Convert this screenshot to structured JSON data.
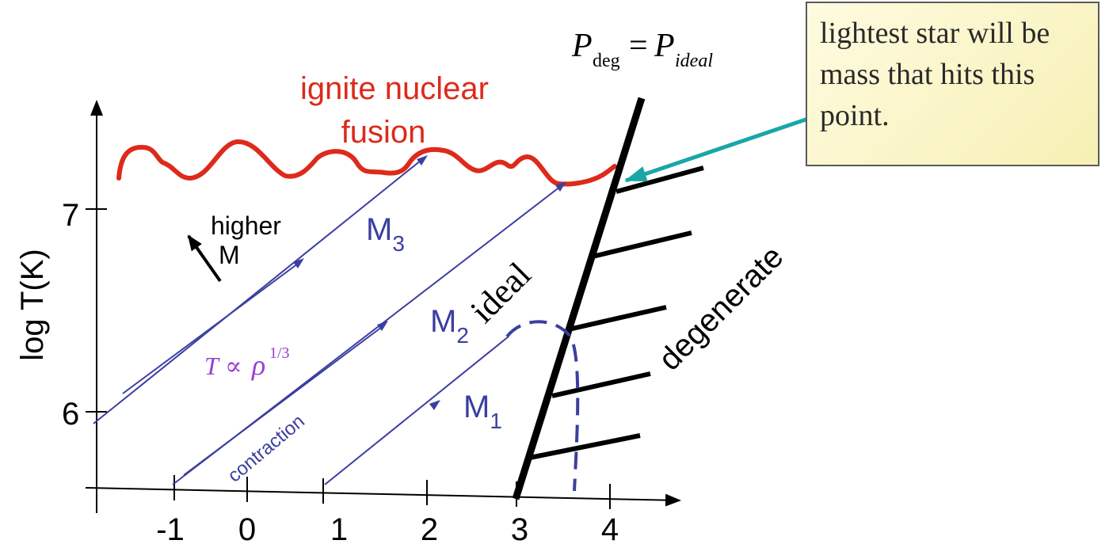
{
  "callout": {
    "text": "lightest star will be mass that hits this point."
  },
  "labels": {
    "ignite_line1": "ignite nuclear",
    "ignite_line2": "fusion",
    "pdeg_P1": "P",
    "pdeg_sub1": "deg",
    "pdeg_eq": "=",
    "pdeg_P2": "P",
    "pdeg_sub2": "ideal",
    "higher": "higher",
    "higher_M": "M",
    "M3": "M",
    "M3_sub": "3",
    "M2": "M",
    "M2_sub": "2",
    "M1": "M",
    "M1_sub": "1",
    "ideal": "ideal",
    "degenerate": "degenerate",
    "relation_T": "T",
    "relation_prop": "∝",
    "relation_rho": "ρ",
    "relation_exp": "1/3",
    "contraction": "contraction"
  },
  "axes": {
    "y_label": "log T(K)",
    "x_ticks": [
      "-1",
      "0",
      "1",
      "2",
      "3",
      "4"
    ],
    "y_ticks": [
      "6",
      "7"
    ]
  },
  "colors": {
    "fusion": "#dd2a1b",
    "track": "#3b3f9f",
    "degenerate": "#000000",
    "relation": "#9a3fd6",
    "arrow": "#1aa6a6"
  }
}
